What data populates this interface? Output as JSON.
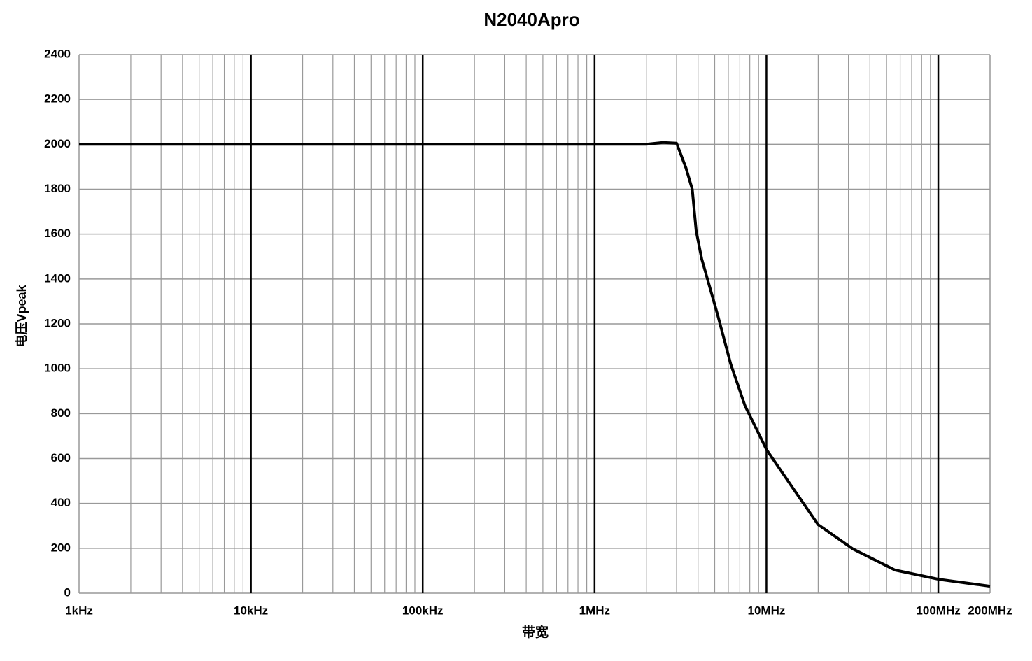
{
  "chart_data": {
    "type": "line",
    "title": "N2040Apro",
    "x_label": "带宽",
    "y_label": "电压Vpeak",
    "log_x": true,
    "grid": true,
    "xlim": [
      1000,
      200000000
    ],
    "xticks": [
      {
        "value": 1000,
        "label": "1kHz"
      },
      {
        "value": 10000,
        "label": "10kHz"
      },
      {
        "value": 100000,
        "label": "100kHz"
      },
      {
        "value": 1000000,
        "label": "1MHz"
      },
      {
        "value": 10000000,
        "label": "10MHz"
      },
      {
        "value": 100000000,
        "label": "100MHz"
      },
      {
        "value": 200000000,
        "label": "200MHz"
      }
    ],
    "ylim": [
      0,
      2400
    ],
    "yticks": [
      0,
      200,
      400,
      600,
      800,
      1000,
      1200,
      1400,
      1600,
      1800,
      2000,
      2200,
      2400
    ],
    "series": [
      {
        "color": "#000000",
        "x": [
          1000,
          2000000,
          2500000,
          3000000,
          3400000,
          3700000,
          3900000,
          4200000,
          5200000,
          6200000,
          7500000,
          10000000,
          14000000,
          20000000,
          32000000,
          56000000,
          100000000,
          200000000
        ],
        "values": [
          2000,
          2000,
          2008,
          2005,
          1895,
          1800,
          1615,
          1490,
          1240,
          1020,
          835,
          640,
          477,
          305,
          196,
          103,
          62,
          31
        ]
      }
    ]
  }
}
